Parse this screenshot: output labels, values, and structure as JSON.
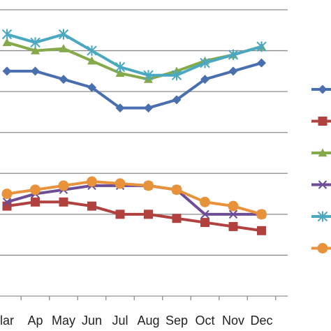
{
  "chart_data": {
    "type": "line",
    "categories": [
      "Mar",
      "Ap",
      "May",
      "Jun",
      "Jul",
      "Aug",
      "Sep",
      "Oct",
      "Nov",
      "Dec"
    ],
    "categories_visible": [
      "lar",
      "Ap",
      "May",
      "Jun",
      "Jul",
      "Aug",
      "Sep",
      "Oct",
      "Nov",
      "Dec"
    ],
    "ylim": [
      0,
      7
    ],
    "grid": true,
    "legend_position": "right",
    "series": [
      {
        "color": "#4A6FAF",
        "marker": "diamond",
        "values": [
          5.5,
          5.5,
          5.3,
          5.1,
          4.6,
          4.6,
          4.8,
          5.3,
          5.5,
          5.7
        ]
      },
      {
        "color": "#B0413E",
        "marker": "square",
        "values": [
          2.2,
          2.3,
          2.3,
          2.2,
          2.0,
          2.0,
          1.9,
          1.8,
          1.7,
          1.6
        ]
      },
      {
        "color": "#86A94A",
        "marker": "triangle",
        "values": [
          6.2,
          6.0,
          6.05,
          5.75,
          5.45,
          5.3,
          5.5,
          5.75,
          5.9,
          6.1
        ]
      },
      {
        "color": "#6D4E96",
        "marker": "x",
        "values": [
          2.3,
          2.5,
          2.6,
          2.7,
          2.7,
          2.7,
          2.6,
          2.0,
          2.0,
          2.0
        ]
      },
      {
        "color": "#4BA8C1",
        "marker": "star",
        "values": [
          6.4,
          6.2,
          6.4,
          6.0,
          5.6,
          5.4,
          5.4,
          5.7,
          5.9,
          6.1
        ]
      },
      {
        "color": "#E8923C",
        "marker": "circle",
        "values": [
          2.5,
          2.6,
          2.7,
          2.8,
          2.75,
          2.7,
          2.6,
          2.3,
          2.2,
          2.0
        ]
      }
    ]
  }
}
